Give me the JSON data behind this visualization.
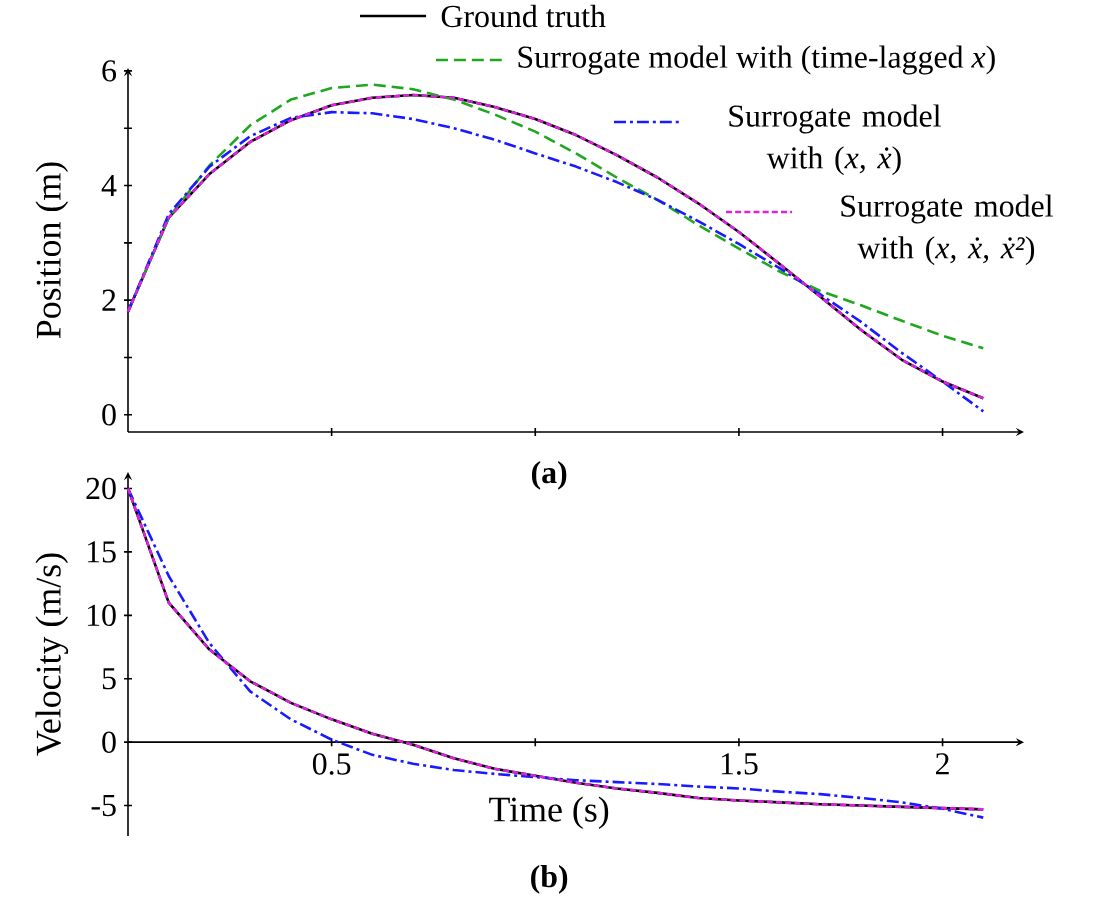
{
  "chart_data": [
    {
      "type": "line",
      "ylabel": "Position (m)",
      "annotations": [
        "(a)"
      ],
      "legend": "top right",
      "tick_labels": "y",
      "grid": false,
      "xlim": [
        0,
        2.2
      ],
      "ylim": [
        -0.3,
        6.05
      ],
      "xticks": [
        {
          "value": 0.5,
          "label": null
        },
        {
          "value": 1,
          "label": null
        },
        {
          "value": 1.5,
          "label": null
        },
        {
          "value": 2,
          "label": null
        }
      ],
      "yticks": [
        0,
        {
          "value": 1,
          "label": null
        },
        2,
        {
          "value": 3,
          "label": null
        },
        4,
        {
          "value": 5,
          "label": null
        },
        6
      ],
      "x": [
        0,
        0.1,
        0.2,
        0.3,
        0.4,
        0.5,
        0.6,
        0.7,
        0.8,
        0.9,
        1.0,
        1.1,
        1.2,
        1.3,
        1.4,
        1.5,
        1.6,
        1.7,
        1.8,
        1.9,
        2.0,
        2.1
      ],
      "series": [
        {
          "name": "Ground truth",
          "color": "#000000",
          "line_style": "solid",
          "values": [
            1.8,
            3.44,
            4.2,
            4.76,
            5.14,
            5.4,
            5.53,
            5.58,
            5.53,
            5.37,
            5.16,
            4.88,
            4.53,
            4.14,
            3.69,
            3.19,
            2.63,
            2.06,
            1.48,
            0.96,
            0.58,
            0.29
          ]
        },
        {
          "name": "Surrogate model with (time-lagged *x*)",
          "color": "#1fa81f",
          "line_style": "dashed",
          "values": [
            1.8,
            3.44,
            4.35,
            5.05,
            5.5,
            5.7,
            5.76,
            5.68,
            5.5,
            5.24,
            4.94,
            4.56,
            4.14,
            3.75,
            3.31,
            2.9,
            2.5,
            2.16,
            1.91,
            1.64,
            1.38,
            1.16
          ]
        },
        {
          "name": "Surrogate model with (*x, ẋ*)",
          "color": "#1a1aff",
          "line_style": "dashdot",
          "values": [
            1.8,
            3.5,
            4.33,
            4.86,
            5.18,
            5.28,
            5.26,
            5.16,
            5.0,
            4.8,
            4.56,
            4.33,
            4.06,
            3.75,
            3.38,
            2.98,
            2.56,
            2.1,
            1.62,
            1.08,
            0.58,
            0.06
          ]
        },
        {
          "name": "Surrogate model with (*x, ẋ, ẋ²*)",
          "color": "#e020e0",
          "line_style": "dotted",
          "values": [
            1.8,
            3.44,
            4.2,
            4.76,
            5.14,
            5.4,
            5.53,
            5.58,
            5.53,
            5.37,
            5.16,
            4.88,
            4.53,
            4.14,
            3.69,
            3.19,
            2.63,
            2.06,
            1.48,
            0.96,
            0.58,
            0.29
          ]
        }
      ]
    },
    {
      "type": "line",
      "xlabel": "Time (s)",
      "ylabel": "Velocity (m/s)",
      "annotations": [
        "(b)"
      ],
      "grid": false,
      "xlim": [
        0,
        2.2
      ],
      "ylim": [
        -7.4,
        21.3
      ],
      "xticks": [
        0.5,
        {
          "value": 1,
          "label": null
        },
        1.5,
        2
      ],
      "yticks": [
        -5,
        0,
        5,
        10,
        15,
        20
      ],
      "x": [
        0,
        0.1,
        0.2,
        0.3,
        0.4,
        0.5,
        0.6,
        0.7,
        0.8,
        0.9,
        1.0,
        1.1,
        1.2,
        1.3,
        1.4,
        1.5,
        1.6,
        1.7,
        1.8,
        1.9,
        2.0,
        2.1
      ],
      "series": [
        {
          "color": "#000000",
          "line_style": "solid",
          "values": [
            20,
            11.0,
            7.3,
            4.8,
            3.1,
            1.8,
            0.66,
            -0.2,
            -1.27,
            -2.1,
            -2.65,
            -3.2,
            -3.65,
            -4.0,
            -4.4,
            -4.6,
            -4.75,
            -4.9,
            -5.0,
            -5.1,
            -5.2,
            -5.3
          ]
        },
        {
          "color": "#1a1aff",
          "line_style": "dashdot",
          "values": [
            20,
            13.1,
            7.8,
            4.0,
            1.8,
            0.2,
            -1.0,
            -1.7,
            -2.2,
            -2.5,
            -2.76,
            -3.0,
            -3.15,
            -3.3,
            -3.5,
            -3.65,
            -3.9,
            -4.1,
            -4.4,
            -4.75,
            -5.25,
            -5.95
          ]
        },
        {
          "color": "#e020e0",
          "line_style": "dotted",
          "values": [
            20,
            11.0,
            7.3,
            4.8,
            3.1,
            1.8,
            0.66,
            -0.2,
            -1.27,
            -2.1,
            -2.65,
            -3.2,
            -3.65,
            -4.0,
            -4.4,
            -4.6,
            -4.75,
            -4.9,
            -5.0,
            -5.1,
            -5.2,
            -5.3
          ]
        }
      ]
    }
  ]
}
